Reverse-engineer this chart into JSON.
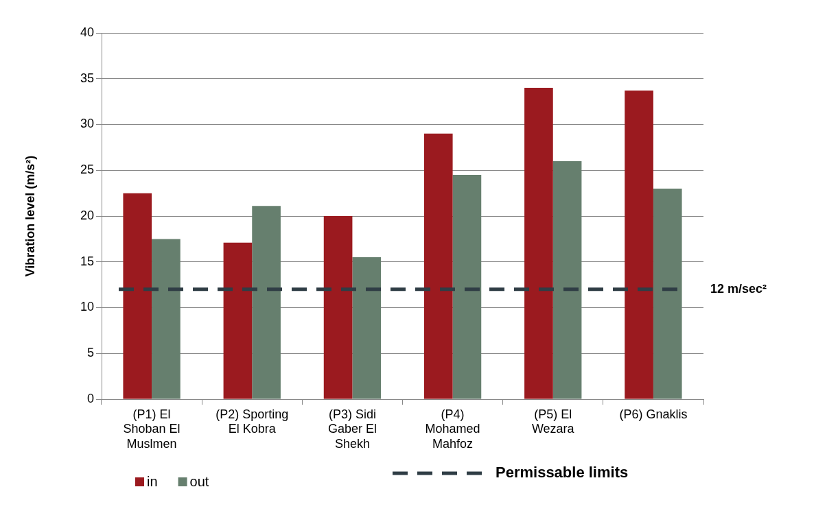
{
  "chart_data": {
    "type": "bar",
    "ylabel": "Vibration level (m/s²)",
    "categories": [
      "(P1) El Shoban El Muslmen",
      "(P2) Sporting El Kobra",
      "(P3) Sidi Gaber El Shekh",
      "(P4) Mohamed Mahfoz",
      "(P5) El Wezara",
      "(P6) Gnaklis"
    ],
    "series": [
      {
        "name": "in",
        "color": "#9b1a1f",
        "values": [
          22.5,
          17.1,
          20.0,
          29.0,
          34.0,
          33.7
        ]
      },
      {
        "name": "out",
        "color": "#667f6e",
        "values": [
          17.5,
          21.1,
          15.5,
          24.5,
          26.0,
          23.0
        ]
      }
    ],
    "ylim": [
      0,
      40
    ],
    "yticks": [
      0,
      5,
      10,
      15,
      20,
      25,
      30,
      35,
      40
    ],
    "grid": "y",
    "legend": "bottom",
    "ref_lines": [
      {
        "axis": "y",
        "value": 12,
        "label": "12 m/sec²",
        "color": "#2f3d45",
        "line_style": "dashed"
      }
    ],
    "annotations": [
      "Permissable limits"
    ]
  }
}
